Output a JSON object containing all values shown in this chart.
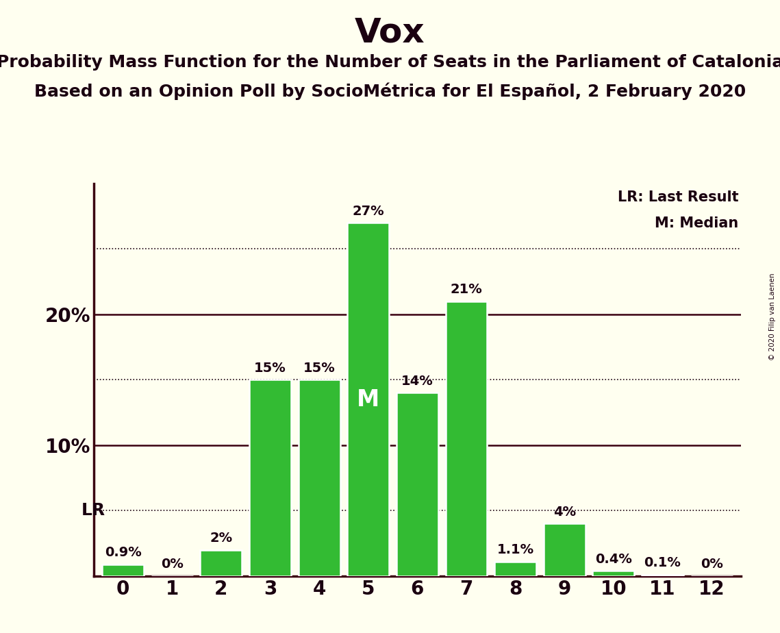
{
  "title": "Vox",
  "subtitle1": "Probability Mass Function for the Number of Seats in the Parliament of Catalonia",
  "subtitle2": "Based on an Opinion Poll by SocioMétrica for El Español, 2 February 2020",
  "copyright": "© 2020 Filip van Laenen",
  "seats": [
    0,
    1,
    2,
    3,
    4,
    5,
    6,
    7,
    8,
    9,
    10,
    11,
    12
  ],
  "probabilities": [
    0.9,
    0.0,
    2.0,
    15.0,
    15.0,
    27.0,
    14.0,
    21.0,
    1.1,
    4.0,
    0.4,
    0.1,
    0.0
  ],
  "bar_color": "#33bb33",
  "bar_edge_color": "white",
  "background_color": "#fffff0",
  "axis_color": "#3a0010",
  "text_color": "#1a0010",
  "median_seat": 5,
  "lr_value": 5.0,
  "yticks": [
    10,
    20
  ],
  "dotted_yticks": [
    5,
    15,
    25
  ],
  "ylim": [
    0,
    30
  ],
  "label_fontsize": 14,
  "title_fontsize": 36,
  "subtitle_fontsize": 18,
  "tick_fontsize": 20,
  "legend_fontsize": 15
}
